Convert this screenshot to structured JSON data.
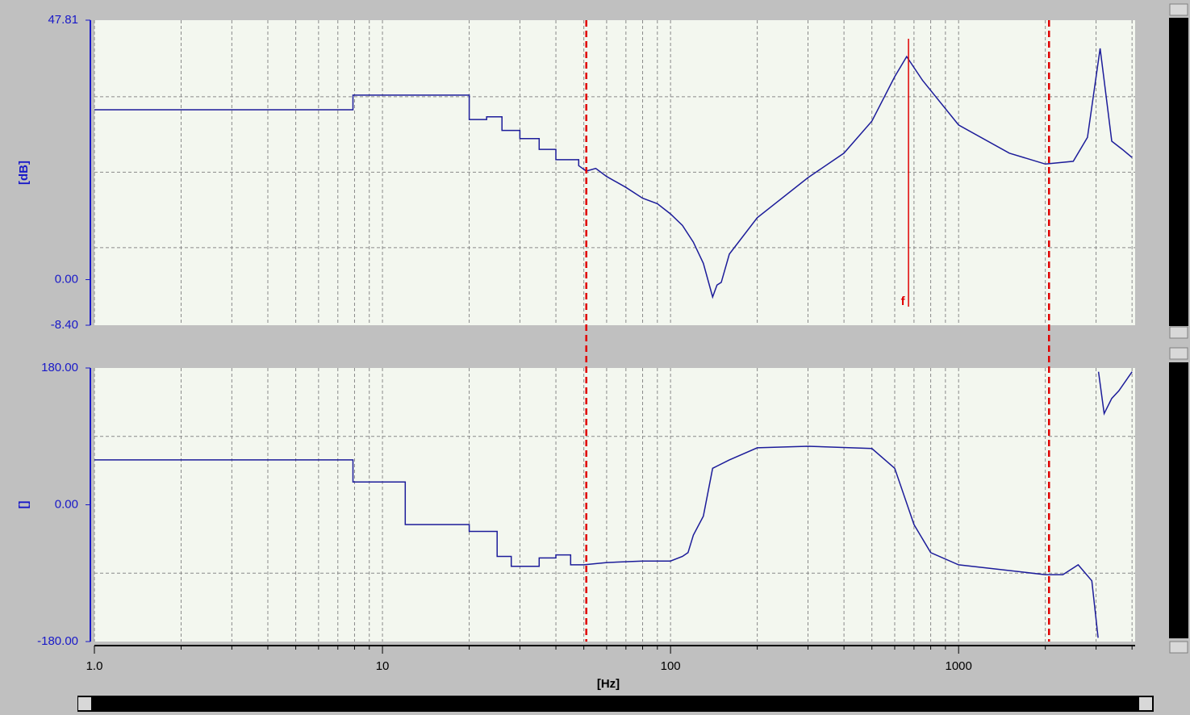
{
  "chart_data": [
    {
      "type": "line",
      "ylabel": "[dB]",
      "color": "#1c1c9a",
      "log_x": true,
      "grid": true,
      "xlim": [
        1,
        4100
      ],
      "xticks": [
        {
          "value": 1,
          "label": "1.0"
        },
        10,
        100,
        1000
      ],
      "ylim": [
        -8.4,
        47.81
      ],
      "yticks": [
        47.81,
        {
          "value": 0,
          "label": "0.00"
        },
        {
          "value": -8.4,
          "label": "-8.40"
        }
      ],
      "ygrid": [
        5.9,
        19.8,
        33.7
      ],
      "cursors": [
        51,
        2060
      ],
      "cursor_color": "#e00000",
      "marker": {
        "x": 670,
        "label": "f"
      },
      "x": [
        1,
        7.9,
        7.9,
        20,
        20,
        23,
        23,
        26,
        26,
        30,
        30,
        35,
        35,
        40,
        40,
        48,
        48,
        51,
        55,
        60,
        70,
        80,
        90,
        100,
        110,
        120,
        130,
        140,
        145,
        150,
        160,
        200,
        300,
        400,
        500,
        600,
        660,
        750,
        1000,
        1500,
        2000,
        2500,
        2800,
        3100,
        3200,
        3400,
        3700,
        4000
      ],
      "values": [
        31.3,
        31.3,
        34.0,
        34.0,
        29.5,
        29.5,
        30.0,
        30.0,
        27.5,
        27.5,
        26.0,
        26.0,
        24.0,
        24.0,
        22.1,
        22.1,
        21.0,
        20.0,
        20.5,
        19.0,
        17.0,
        15.0,
        14.0,
        12.1,
        10.0,
        6.9,
        3.0,
        -3.2,
        -1.0,
        -0.5,
        4.7,
        11.4,
        18.8,
        23.3,
        29.2,
        37.4,
        41.1,
        36.7,
        28.5,
        23.3,
        21.3,
        21.8,
        26.2,
        42.6,
        36.7,
        25.5,
        24.0,
        22.5
      ]
    },
    {
      "type": "line",
      "ylabel": "[]",
      "xlabel": "[Hz]",
      "color": "#1c1c9a",
      "log_x": true,
      "grid": true,
      "xlim": [
        1,
        4100
      ],
      "xticks": [
        {
          "value": 1,
          "label": "1.0"
        },
        10,
        100,
        1000
      ],
      "ylim": [
        -180,
        180
      ],
      "yticks": [
        {
          "value": 180,
          "label": "180.00"
        },
        {
          "value": 0,
          "label": "0.00"
        },
        {
          "value": -180,
          "label": "-180.00"
        }
      ],
      "ygrid": [
        -90,
        90
      ],
      "x": [
        1,
        7.9,
        7.9,
        12,
        12,
        20,
        20,
        25,
        25,
        28,
        28,
        35,
        35,
        40,
        40,
        45,
        45,
        50,
        60,
        80,
        100,
        110,
        115,
        120,
        130,
        140,
        160,
        200,
        300,
        500,
        600,
        700,
        800,
        1000,
        2000,
        2300,
        2600,
        2900,
        3050,
        null,
        3060,
        3200,
        3400,
        3600,
        4000
      ],
      "values": [
        59,
        59,
        30,
        30,
        -26,
        -26,
        -35,
        -35,
        -68,
        -68,
        -81,
        -81,
        -70,
        -70,
        -66,
        -66,
        -79,
        -79,
        -76,
        -74,
        -74,
        -68,
        -63,
        -40,
        -15,
        48,
        59,
        75,
        77,
        74,
        48,
        -26,
        -63,
        -79,
        -92,
        -92,
        -79,
        -100,
        -175,
        null,
        175,
        120,
        140,
        150,
        175
      ]
    }
  ]
}
